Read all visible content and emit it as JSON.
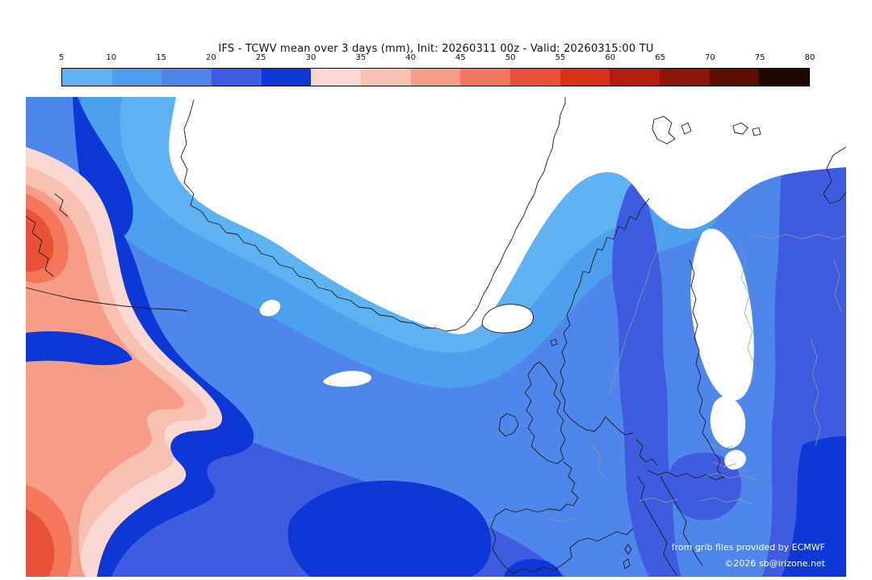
{
  "title": "IFS - TCWV mean over 3 days (mm), Init: 20260311 00z - Valid: 20260315:00 TU",
  "colorbar": {
    "tick_labels": [
      "5",
      "10",
      "15",
      "20",
      "25",
      "30",
      "35",
      "40",
      "45",
      "50",
      "55",
      "60",
      "65",
      "70",
      "75",
      "80"
    ],
    "segment_colors": [
      "#5fb2f2",
      "#4da0ee",
      "#4e86ec",
      "#3f5ce0",
      "#0d38d6",
      "#fbd9d2",
      "#f8c0b0",
      "#f79d87",
      "#f4775c",
      "#ea5238",
      "#d93018",
      "#b01e0e",
      "#8c1708",
      "#5a0e03",
      "#1f0802"
    ],
    "unit": "mm"
  },
  "map": {
    "palette": {
      "tcwv_00_05": "#ffffff",
      "tcwv_05_10": "#5fb2f2",
      "tcwv_10_15": "#4da0ee",
      "tcwv_15_20": "#4e86ec",
      "tcwv_20_25": "#3f5ce0",
      "tcwv_25_30": "#0d38d6",
      "tcwv_30_35": "#fbd9d2",
      "tcwv_35_40": "#f8c0b0",
      "tcwv_40_45": "#f79d87",
      "tcwv_45_50": "#f4775c",
      "tcwv_50_55": "#ea5238"
    },
    "coastline_color": "#1c1c1c",
    "border_color": "#9a9a9a",
    "credits": {
      "line1": "from grib files provided by ECMWF",
      "line2": "©2026 sb@irizone.net"
    }
  }
}
